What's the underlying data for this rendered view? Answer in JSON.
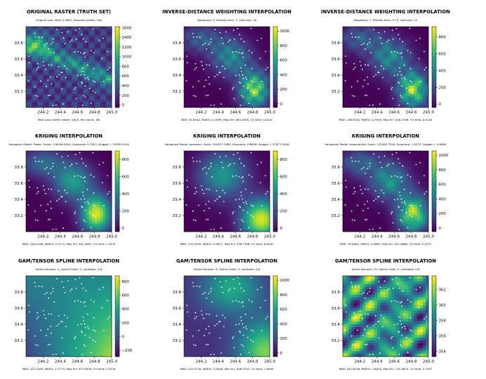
{
  "figure": {
    "panels": [
      {
        "title": "ORIGINAL RASTER (TRUTH SET)",
        "subtitle": "Original size: 3601 x 3601, Sampled points: 100",
        "footer": "Max value within raster: 1619,  Min value: .88",
        "colorbar_ticks": [
          "0",
          "200",
          "400",
          "600",
          "800",
          "1000",
          "1200",
          "1400",
          "1600"
        ],
        "colorbar_range": [
          -50,
          1620
        ]
      },
      {
        "title": "INVERSE-DISTANCE WEIGHTING INTERPOLATION",
        "subtitle": "Neighbors: 5, Penalty term: 1, Leaf size: 10",
        "footer": "MAE: 92.8542,  MAE%: 0.7095,  Max Err: 464.3205,  CV time: 0.0151",
        "colorbar_ticks": [
          "0",
          "200",
          "400",
          "600",
          "800",
          "1000"
        ],
        "colorbar_range": [
          -50,
          1060
        ]
      },
      {
        "title": "INVERSE-DISTANCE WEIGHTING INTERPOLATION",
        "subtitle": "Neighbors: 7, Penalty term: 3.75, Leaf size: 15",
        "footer": "MAE: 106.9202,  MAE%: 0.7930,  Max Err: 426.1336,  CV time: 0.0144",
        "colorbar_ticks": [
          "0",
          "200",
          "400",
          "600",
          "800"
        ],
        "colorbar_range": [
          -40,
          920
        ]
      },
      {
        "title": "KRIGING INTERPOLATION",
        "subtitle": "Vanogram Model: Power, Scale: 116148.0445, Exponent: 0.7625, Nugget = 25450.5104",
        "footer": "MAE: 104.5196,  MAE%: 0.7173,  Max Err: 442.9067,  CV time: 1.4379",
        "colorbar_ticks": [
          "0",
          "200",
          "400",
          "600",
          "800"
        ],
        "colorbar_range": [
          -40,
          900
        ]
      },
      {
        "title": "KRIGING INTERPOLATION",
        "subtitle": "Vanogram Model: gaussian, Scale: 120357.1963, Exponent: 0.8656, Nugget = 27077.1849",
        "footer": "MAE: 125.5292,  MAE%: 0.9811,  Max Err: 338.7106,  CV time: 0.8167",
        "colorbar_ticks": [
          "0",
          "200",
          "400",
          "600",
          "800"
        ],
        "colorbar_range": [
          -40,
          900
        ]
      },
      {
        "title": "KRIGING INTERPOLATION",
        "subtitle": "Vanogram Model: exponential, Scale: 122262.3316, Exponent: 1.0373, Nugget = 0.0000",
        "footer": "MAE: 79.0805,  MAE%: 0.5867,  Max Err: 451.6886,  CV time: 3.2571",
        "colorbar_ticks": [
          "0",
          "200",
          "400",
          "600",
          "800",
          "1000"
        ],
        "colorbar_range": [
          -50,
          1060
        ]
      },
      {
        "title": "GAM/TENSOR SPLINE INTERPOLATION",
        "subtitle": "Spline Number: 4, Spline Order: 2, Lambdas: 0.6",
        "footer": "MAE: 107.2185,  MAE%: 1.7773,  Max Err: 473.0978,  CV time: 1.3234",
        "colorbar_ticks": [
          "−200",
          "0",
          "200",
          "400",
          "600",
          "800"
        ],
        "colorbar_range": [
          -290,
          880
        ]
      },
      {
        "title": "GAM/TENSOR SPLINE INTERPOLATION",
        "subtitle": "Spline Number: 6, Spline Order: 3, Lambdas: 0.6",
        "footer": "MAE: 132.4730,  MAE%: 1.0548,  Max Err: 406.2741,  CV time: 1.6994",
        "colorbar_ticks": [
          "0",
          "200",
          "400",
          "600",
          "800",
          "1000"
        ],
        "colorbar_range": [
          -50,
          1060
        ]
      },
      {
        "title": "GAM/TENSOR SPLINE INTERPOLATION",
        "subtitle": "Spline Number: 15, Spline Order: 3, Lambdas: 0.6",
        "footer": "MAE: 242.6228,  MAE%: 2.8035,  Max Err: 715.4873,  CV time: 3.7957",
        "colorbar_ticks": [
          "354",
          "356",
          "358",
          "360",
          "362"
        ],
        "colorbar_range": [
          353.3,
          363.8
        ]
      }
    ]
  },
  "chart_data": [
    {
      "type": "heatmap",
      "title": "ORIGINAL RASTER (TRUTH SET)",
      "x_ticks": [
        244.2,
        244.4,
        244.6,
        244.8,
        245.0
      ],
      "y_ticks": [
        33.2,
        33.4,
        33.6,
        33.8
      ],
      "xlim": [
        244.0,
        245.0
      ],
      "ylim": [
        33.0,
        34.0
      ],
      "colormap": "viridis",
      "value_range": [
        0.88,
        1619
      ],
      "sampled_points": 100
    },
    {
      "type": "heatmap",
      "title": "INVERSE-DISTANCE WEIGHTING INTERPOLATION",
      "x_ticks": [
        244.2,
        244.4,
        244.6,
        244.8,
        245.0
      ],
      "y_ticks": [
        33.2,
        33.4,
        33.6,
        33.8
      ],
      "xlim": [
        244.0,
        245.0
      ],
      "ylim": [
        33.0,
        34.0
      ],
      "colormap": "viridis",
      "params": {
        "neighbors": 5,
        "penalty_term": 1,
        "leaf_size": 10
      },
      "metrics": {
        "mae": 92.8542,
        "mae_pct": 0.7095,
        "max_err": 464.3205,
        "cv_time": 0.0151
      }
    },
    {
      "type": "heatmap",
      "title": "INVERSE-DISTANCE WEIGHTING INTERPOLATION",
      "x_ticks": [
        244.2,
        244.4,
        244.6,
        244.8,
        245.0
      ],
      "y_ticks": [
        33.2,
        33.4,
        33.6,
        33.8
      ],
      "xlim": [
        244.0,
        245.0
      ],
      "ylim": [
        33.0,
        34.0
      ],
      "colormap": "viridis",
      "params": {
        "neighbors": 7,
        "penalty_term": 3.75,
        "leaf_size": 15
      },
      "metrics": {
        "mae": 106.9202,
        "mae_pct": 0.793,
        "max_err": 426.1336,
        "cv_time": 0.0144
      }
    },
    {
      "type": "heatmap",
      "title": "KRIGING INTERPOLATION",
      "x_ticks": [
        244.2,
        244.4,
        244.6,
        244.8,
        245.0
      ],
      "y_ticks": [
        33.2,
        33.4,
        33.6,
        33.8
      ],
      "xlim": [
        244.0,
        245.0
      ],
      "ylim": [
        33.0,
        34.0
      ],
      "colormap": "viridis",
      "params": {
        "variogram": "Power",
        "scale": 116148.0445,
        "exponent": 0.7625,
        "nugget": 25450.5104
      },
      "metrics": {
        "mae": 104.5196,
        "mae_pct": 0.7173,
        "max_err": 442.9067,
        "cv_time": 1.4379
      }
    },
    {
      "type": "heatmap",
      "title": "KRIGING INTERPOLATION",
      "x_ticks": [
        244.2,
        244.4,
        244.6,
        244.8,
        245.0
      ],
      "y_ticks": [
        33.2,
        33.4,
        33.6,
        33.8
      ],
      "xlim": [
        244.0,
        245.0
      ],
      "ylim": [
        33.0,
        34.0
      ],
      "colormap": "viridis",
      "params": {
        "variogram": "gaussian",
        "scale": 120357.1963,
        "exponent": 0.8656,
        "nugget": 27077.1849
      },
      "metrics": {
        "mae": 125.5292,
        "mae_pct": 0.9811,
        "max_err": 338.7106,
        "cv_time": 0.8167
      }
    },
    {
      "type": "heatmap",
      "title": "KRIGING INTERPOLATION",
      "x_ticks": [
        244.2,
        244.4,
        244.6,
        244.8,
        245.0
      ],
      "y_ticks": [
        33.2,
        33.4,
        33.6,
        33.8
      ],
      "xlim": [
        244.0,
        245.0
      ],
      "ylim": [
        33.0,
        34.0
      ],
      "colormap": "viridis",
      "params": {
        "variogram": "exponential",
        "scale": 122262.3316,
        "exponent": 1.0373,
        "nugget": 0.0
      },
      "metrics": {
        "mae": 79.0805,
        "mae_pct": 0.5867,
        "max_err": 451.6886,
        "cv_time": 3.2571
      }
    },
    {
      "type": "heatmap",
      "title": "GAM/TENSOR SPLINE INTERPOLATION",
      "x_ticks": [
        244.2,
        244.4,
        244.6,
        244.8,
        245.0
      ],
      "y_ticks": [
        33.2,
        33.4,
        33.6,
        33.8
      ],
      "xlim": [
        244.0,
        245.0
      ],
      "ylim": [
        33.0,
        34.0
      ],
      "colormap": "viridis",
      "params": {
        "spline_number": 4,
        "spline_order": 2,
        "lambdas": 0.6
      },
      "metrics": {
        "mae": 107.2185,
        "mae_pct": 1.7773,
        "max_err": 473.0978,
        "cv_time": 1.3234
      }
    },
    {
      "type": "heatmap",
      "title": "GAM/TENSOR SPLINE INTERPOLATION",
      "x_ticks": [
        244.2,
        244.4,
        244.6,
        244.8,
        245.0
      ],
      "y_ticks": [
        33.2,
        33.4,
        33.6,
        33.8
      ],
      "xlim": [
        244.0,
        245.0
      ],
      "ylim": [
        33.0,
        34.0
      ],
      "colormap": "viridis",
      "params": {
        "spline_number": 6,
        "spline_order": 3,
        "lambdas": 0.6
      },
      "metrics": {
        "mae": 132.473,
        "mae_pct": 1.0548,
        "max_err": 406.2741,
        "cv_time": 1.6994
      }
    },
    {
      "type": "heatmap",
      "title": "GAM/TENSOR SPLINE INTERPOLATION",
      "x_ticks": [
        244.2,
        244.4,
        244.6,
        244.8,
        245.0
      ],
      "y_ticks": [
        33.2,
        33.4,
        33.6,
        33.8
      ],
      "xlim": [
        244.0,
        245.0
      ],
      "ylim": [
        33.0,
        34.0
      ],
      "colormap": "viridis",
      "params": {
        "spline_number": 15,
        "spline_order": 3,
        "lambdas": 0.6
      },
      "metrics": {
        "mae": 242.6228,
        "mae_pct": 2.8035,
        "max_err": 715.4873,
        "cv_time": 3.7957
      }
    }
  ]
}
